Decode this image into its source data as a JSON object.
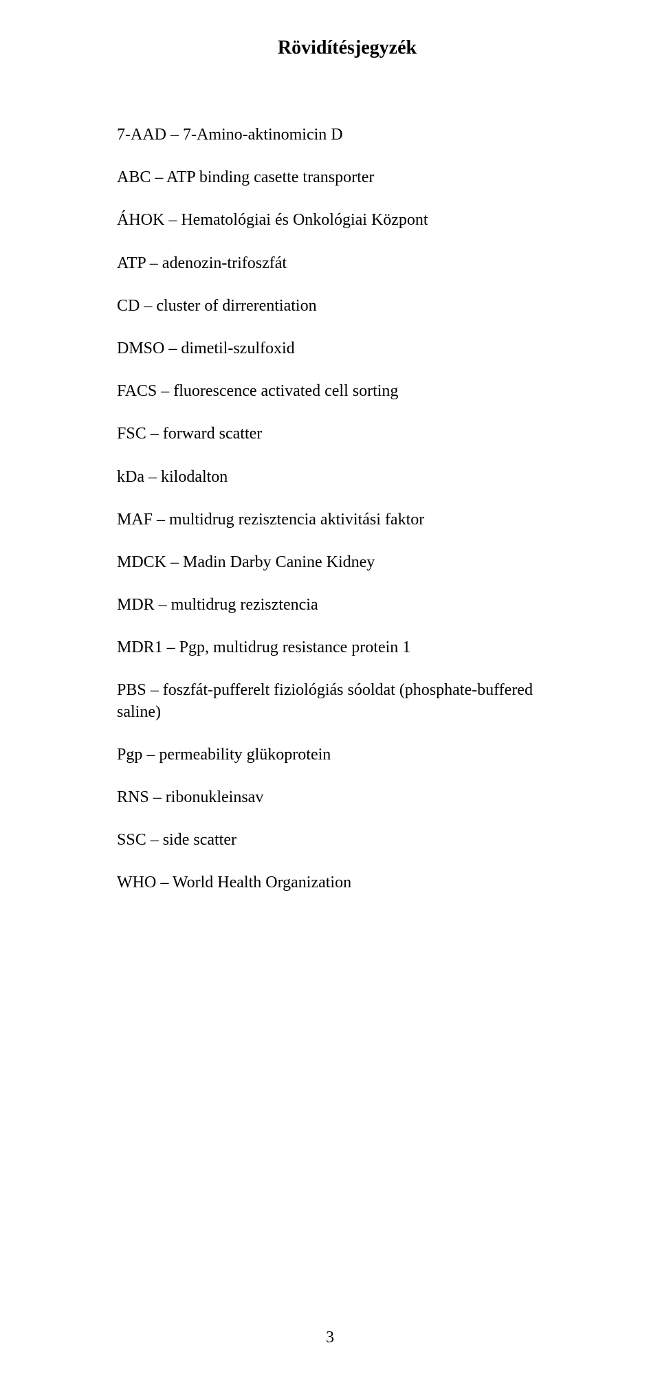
{
  "title": "Rövidítésjegyzék",
  "abbreviations": [
    "7-AAD – 7-Amino-aktinomicin D",
    "ABC – ATP binding casette transporter",
    "ÁHOK – Hematológiai és Onkológiai Központ",
    "ATP – adenozin-trifoszfát",
    "CD – cluster of dirrerentiation",
    "DMSO – dimetil-szulfoxid",
    "FACS – fluorescence activated cell sorting",
    "FSC – forward scatter",
    "kDa – kilodalton",
    "MAF – multidrug rezisztencia aktivitási faktor",
    "MDCK – Madin Darby Canine Kidney",
    "MDR – multidrug rezisztencia",
    "MDR1 – Pgp, multidrug resistance protein 1",
    "PBS – foszfát-pufferelt fiziológiás sóoldat (phosphate-buffered saline)",
    "Pgp – permeability glükoprotein",
    "RNS – ribonukleinsav",
    "SSC – side scatter",
    "WHO – World Health Organization"
  ],
  "page_number": "3"
}
